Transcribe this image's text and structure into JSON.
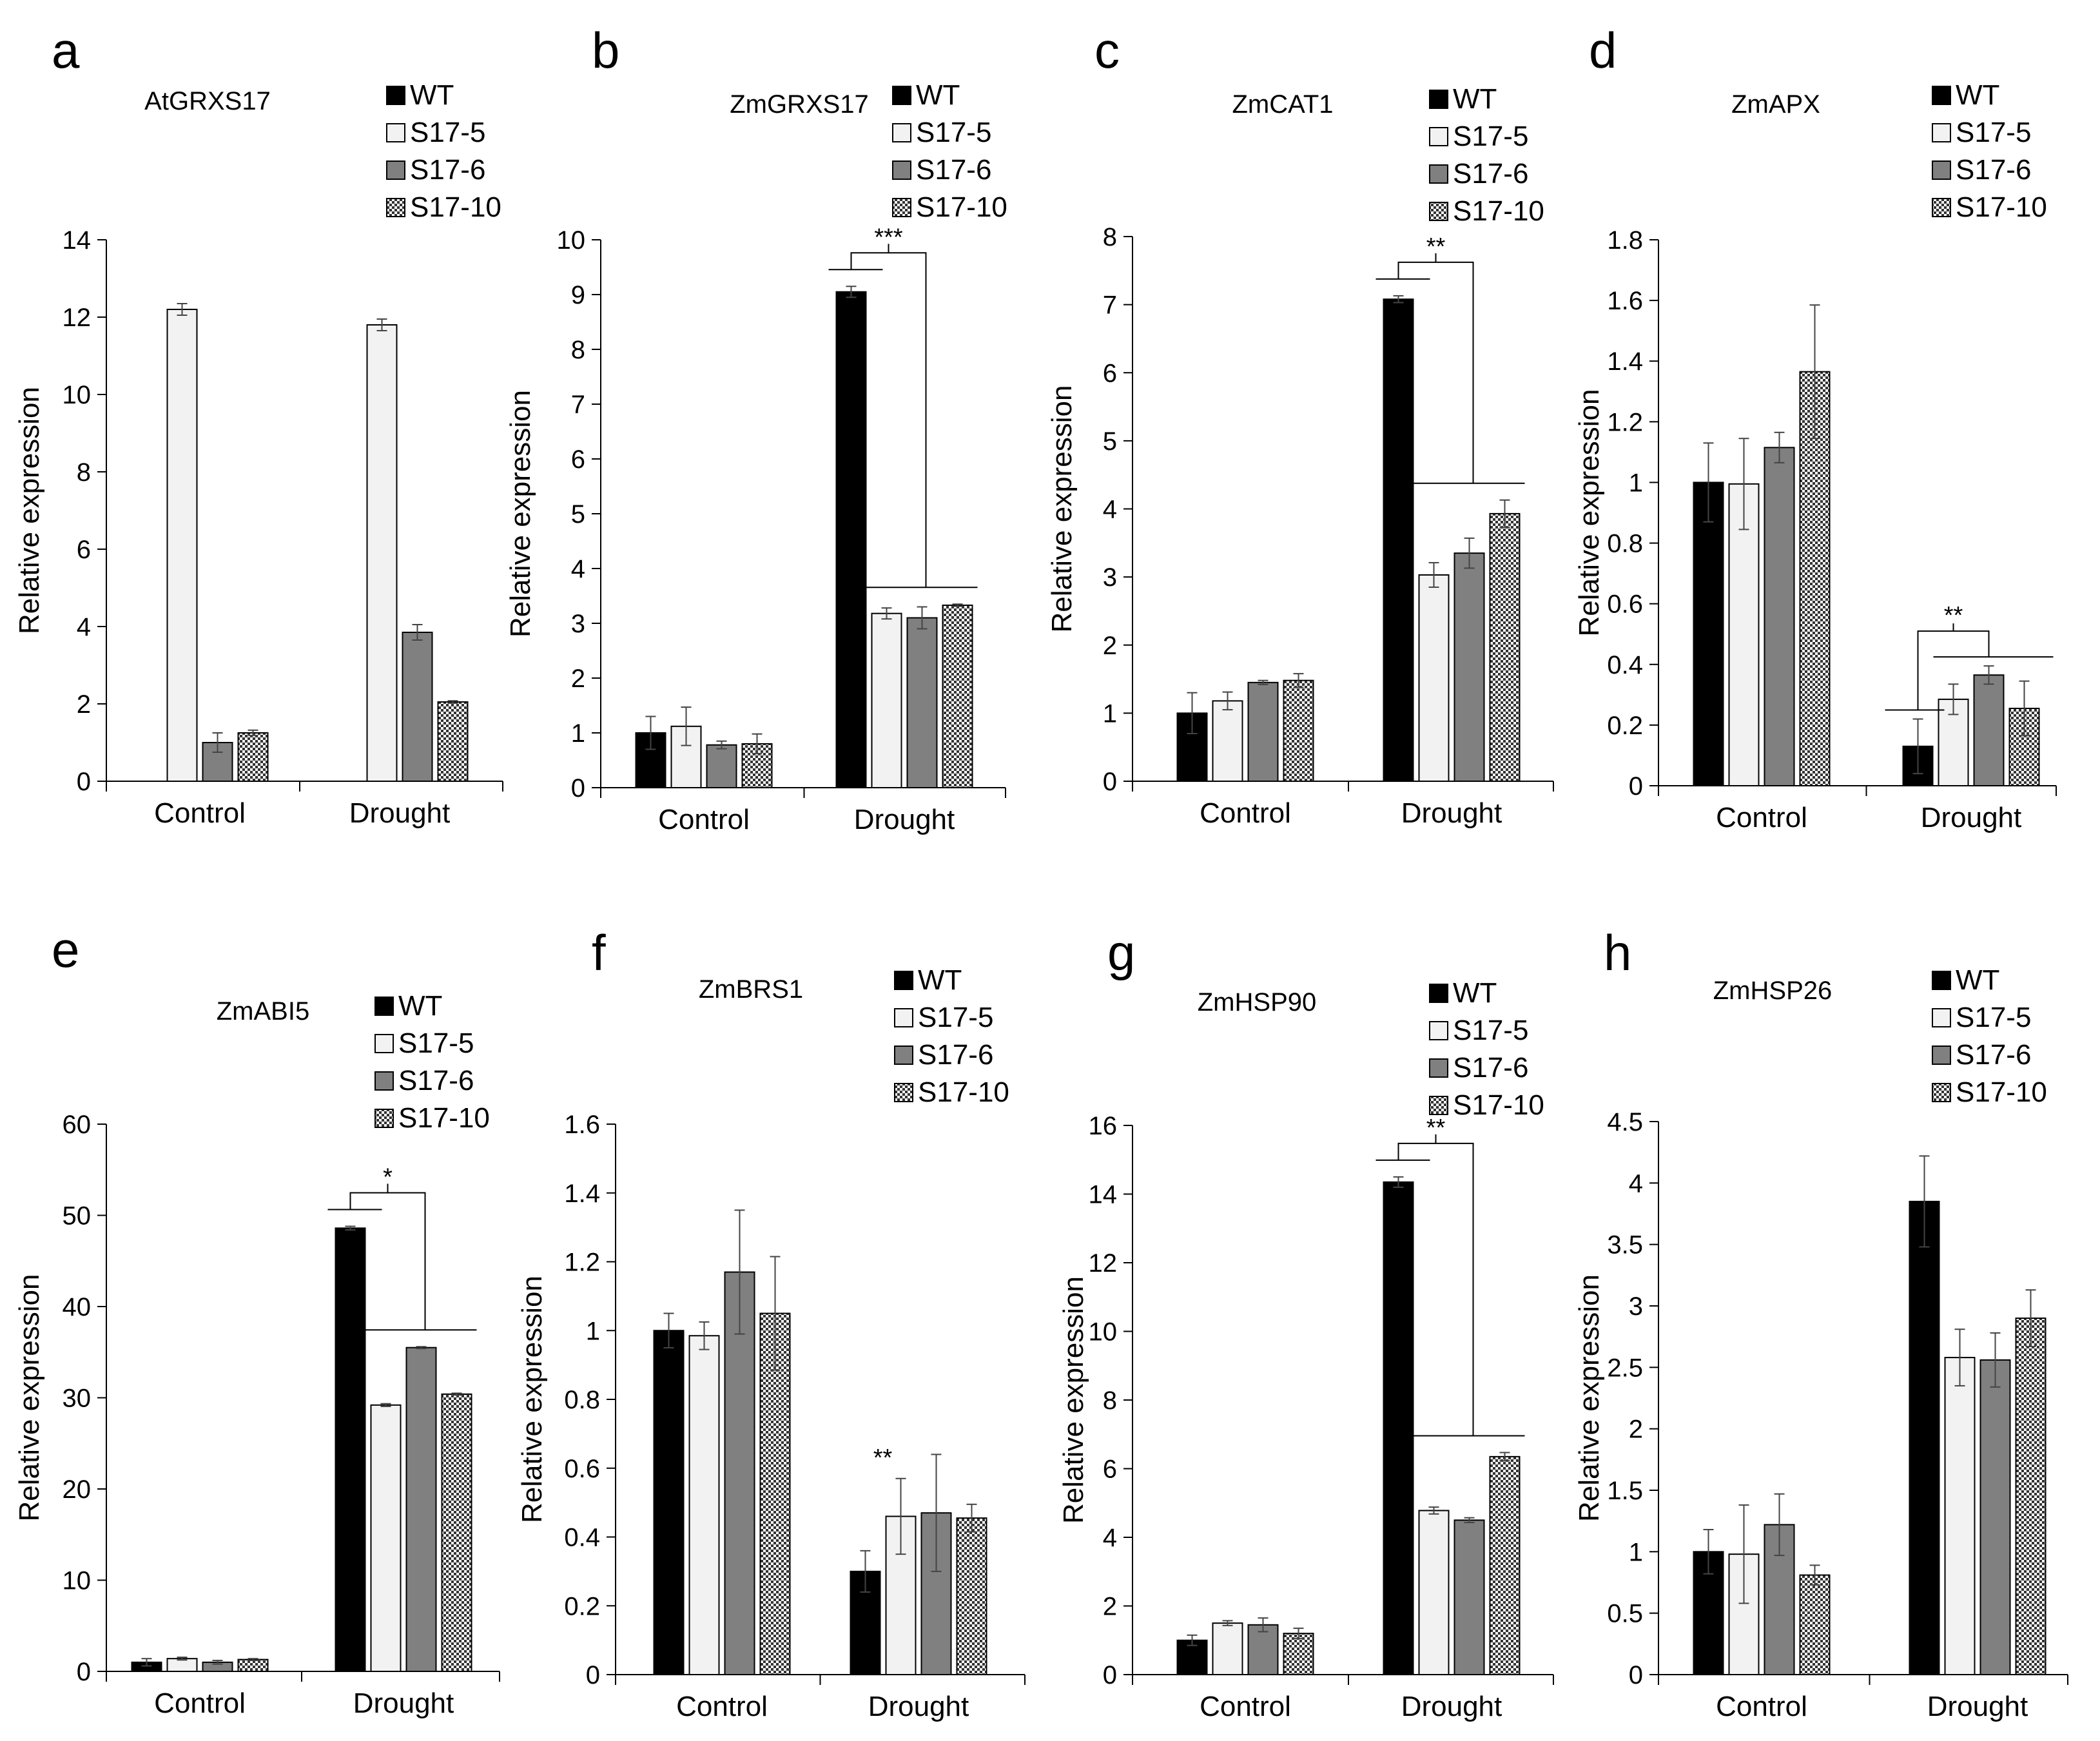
{
  "figure": {
    "series_names": [
      "WT",
      "S17-5",
      "S17-6",
      "S17-10"
    ],
    "categories": [
      "Control",
      "Drought"
    ],
    "series_fills": [
      "#000000",
      "#f2f2f2",
      "#808080",
      "pattern"
    ],
    "axis_label": "Relative expression"
  },
  "chart_data": [
    {
      "type": "bar",
      "panel": "a",
      "title": "AtGRXS17",
      "xlabel": "",
      "ylabel": "Relative expression",
      "categories": [
        "Control",
        "Drought"
      ],
      "ylim": [
        0,
        14
      ],
      "ytick_step": 2,
      "yticks": [
        "0",
        "2",
        "4",
        "6",
        "8",
        "10",
        "12",
        "14"
      ],
      "series": [
        {
          "name": "WT",
          "values": [
            0,
            0
          ],
          "errors": [
            0,
            0
          ]
        },
        {
          "name": "S17-5",
          "values": [
            12.2,
            11.8
          ],
          "errors": [
            0.15,
            0.15
          ]
        },
        {
          "name": "S17-6",
          "values": [
            1.0,
            3.85
          ],
          "errors": [
            0.25,
            0.2
          ]
        },
        {
          "name": "S17-10",
          "values": [
            1.25,
            2.05
          ],
          "errors": [
            0.07,
            0.03
          ]
        }
      ],
      "significance": []
    },
    {
      "type": "bar",
      "panel": "b",
      "title": "ZmGRXS17",
      "xlabel": "",
      "ylabel": "Relative expression",
      "categories": [
        "Control",
        "Drought"
      ],
      "ylim": [
        0,
        10
      ],
      "ytick_step": 1,
      "yticks": [
        "0",
        "1",
        "2",
        "3",
        "4",
        "5",
        "6",
        "7",
        "8",
        "9",
        "10"
      ],
      "series": [
        {
          "name": "WT",
          "values": [
            1.0,
            9.05
          ],
          "errors": [
            0.3,
            0.1
          ]
        },
        {
          "name": "S17-5",
          "values": [
            1.12,
            3.18
          ],
          "errors": [
            0.35,
            0.1
          ]
        },
        {
          "name": "S17-6",
          "values": [
            0.78,
            3.1
          ],
          "errors": [
            0.07,
            0.2
          ]
        },
        {
          "name": "S17-10",
          "values": [
            0.8,
            3.33
          ],
          "errors": [
            0.18,
            0.02
          ]
        }
      ],
      "significance": [
        {
          "category": "Drought",
          "label": "***"
        }
      ]
    },
    {
      "type": "bar",
      "panel": "c",
      "title": "ZmCAT1",
      "xlabel": "",
      "ylabel": "Relative expression",
      "categories": [
        "Control",
        "Drought"
      ],
      "ylim": [
        0,
        8
      ],
      "ytick_step": 1,
      "yticks": [
        "0",
        "1",
        "2",
        "3",
        "4",
        "5",
        "6",
        "7",
        "8"
      ],
      "series": [
        {
          "name": "WT",
          "values": [
            1.0,
            7.08
          ],
          "errors": [
            0.3,
            0.05
          ]
        },
        {
          "name": "S17-5",
          "values": [
            1.18,
            3.03
          ],
          "errors": [
            0.13,
            0.18
          ]
        },
        {
          "name": "S17-6",
          "values": [
            1.45,
            3.35
          ],
          "errors": [
            0.03,
            0.22
          ]
        },
        {
          "name": "S17-10",
          "values": [
            1.48,
            3.93
          ],
          "errors": [
            0.1,
            0.2
          ]
        }
      ],
      "significance": [
        {
          "category": "Drought",
          "label": "**"
        }
      ]
    },
    {
      "type": "bar",
      "panel": "d",
      "title": "ZmAPX",
      "xlabel": "",
      "ylabel": "Relative expression",
      "categories": [
        "Control",
        "Drought"
      ],
      "ylim": [
        0,
        1.8
      ],
      "ytick_step": 0.2,
      "yticks": [
        "0",
        "0.2",
        "0.4",
        "0.6",
        "0.8",
        "1",
        "1.2",
        "1.4",
        "1.6",
        "1.8"
      ],
      "series": [
        {
          "name": "WT",
          "values": [
            1.0,
            0.13
          ],
          "errors": [
            0.13,
            0.09
          ]
        },
        {
          "name": "S17-5",
          "values": [
            0.995,
            0.285
          ],
          "errors": [
            0.15,
            0.05
          ]
        },
        {
          "name": "S17-6",
          "values": [
            1.115,
            0.365
          ],
          "errors": [
            0.05,
            0.03
          ]
        },
        {
          "name": "S17-10",
          "values": [
            1.365,
            0.255
          ],
          "errors": [
            0.22,
            0.09
          ]
        }
      ],
      "significance": [
        {
          "category": "Drought",
          "label": "**"
        }
      ]
    },
    {
      "type": "bar",
      "panel": "e",
      "title": "ZmABI5",
      "xlabel": "",
      "ylabel": "Relative expression",
      "categories": [
        "Control",
        "Drought"
      ],
      "ylim": [
        0,
        60
      ],
      "ytick_step": 10,
      "yticks": [
        "0",
        "10",
        "20",
        "30",
        "40",
        "50",
        "60"
      ],
      "series": [
        {
          "name": "WT",
          "values": [
            1.0,
            48.6
          ],
          "errors": [
            0.4,
            0.2
          ]
        },
        {
          "name": "S17-5",
          "values": [
            1.4,
            29.2
          ],
          "errors": [
            0.15,
            0.15
          ]
        },
        {
          "name": "S17-6",
          "values": [
            1.0,
            35.5
          ],
          "errors": [
            0.2,
            0.1
          ]
        },
        {
          "name": "S17-10",
          "values": [
            1.3,
            30.4
          ],
          "errors": [
            0.1,
            0.1
          ]
        }
      ],
      "significance": [
        {
          "category": "Drought",
          "label": "*"
        }
      ]
    },
    {
      "type": "bar",
      "panel": "f",
      "title": "ZmBRS1",
      "xlabel": "",
      "ylabel": "Relative expression",
      "categories": [
        "Control",
        "Drought"
      ],
      "ylim": [
        0,
        1.6
      ],
      "ytick_step": 0.2,
      "yticks": [
        "0",
        "0.2",
        "0.4",
        "0.6",
        "0.8",
        "1",
        "1.2",
        "1.4",
        "1.6"
      ],
      "series": [
        {
          "name": "WT",
          "values": [
            1.0,
            0.3
          ],
          "errors": [
            0.05,
            0.06
          ]
        },
        {
          "name": "S17-5",
          "values": [
            0.985,
            0.46
          ],
          "errors": [
            0.04,
            0.11
          ]
        },
        {
          "name": "S17-6",
          "values": [
            1.17,
            0.47
          ],
          "errors": [
            0.18,
            0.17
          ]
        },
        {
          "name": "S17-10",
          "values": [
            1.05,
            0.455
          ],
          "errors": [
            0.165,
            0.04
          ]
        }
      ],
      "significance": [
        {
          "category": "Drought",
          "label": "**"
        }
      ]
    },
    {
      "type": "bar",
      "panel": "g",
      "title": "ZmHSP90",
      "xlabel": "",
      "ylabel": "Relative expression",
      "categories": [
        "Control",
        "Drought"
      ],
      "ylim": [
        0,
        16
      ],
      "ytick_step": 2,
      "yticks": [
        "0",
        "2",
        "4",
        "6",
        "8",
        "10",
        "12",
        "14",
        "16"
      ],
      "series": [
        {
          "name": "WT",
          "values": [
            1.0,
            14.35
          ],
          "errors": [
            0.15,
            0.15
          ]
        },
        {
          "name": "S17-5",
          "values": [
            1.5,
            4.78
          ],
          "errors": [
            0.07,
            0.1
          ]
        },
        {
          "name": "S17-6",
          "values": [
            1.45,
            4.5
          ],
          "errors": [
            0.2,
            0.07
          ]
        },
        {
          "name": "S17-10",
          "values": [
            1.2,
            6.35
          ],
          "errors": [
            0.15,
            0.12
          ]
        }
      ],
      "significance": [
        {
          "category": "Drought",
          "label": "**"
        }
      ]
    },
    {
      "type": "bar",
      "panel": "h",
      "title": "ZmHSP26",
      "xlabel": "",
      "ylabel": "Relative expression",
      "categories": [
        "Control",
        "Drought"
      ],
      "ylim": [
        0,
        4.5
      ],
      "ytick_step": 0.5,
      "yticks": [
        "0",
        "0.5",
        "1",
        "1.5",
        "2",
        "2.5",
        "3",
        "3.5",
        "4",
        "4.5"
      ],
      "series": [
        {
          "name": "WT",
          "values": [
            1.0,
            3.85
          ],
          "errors": [
            0.18,
            0.37
          ]
        },
        {
          "name": "S17-5",
          "values": [
            0.98,
            2.58
          ],
          "errors": [
            0.4,
            0.23
          ]
        },
        {
          "name": "S17-6",
          "values": [
            1.22,
            2.56
          ],
          "errors": [
            0.25,
            0.22
          ]
        },
        {
          "name": "S17-10",
          "values": [
            0.81,
            2.9
          ],
          "errors": [
            0.08,
            0.23
          ]
        }
      ],
      "significance": []
    }
  ]
}
